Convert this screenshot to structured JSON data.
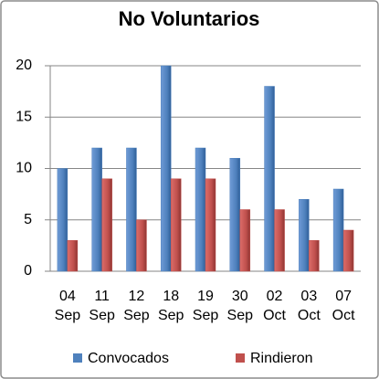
{
  "chart_data": {
    "type": "bar",
    "title": "No Voluntarios",
    "categories": [
      "04 Sep",
      "11 Sep",
      "12 Sep",
      "18 Sep",
      "19 Sep",
      "30 Sep",
      "02 Oct",
      "03 Oct",
      "07 Oct"
    ],
    "series": [
      {
        "name": "Convocados",
        "color": "#4f81bd",
        "values": [
          10,
          12,
          12,
          20,
          12,
          11,
          18,
          7,
          8
        ]
      },
      {
        "name": "Rindieron",
        "color": "#c0504d",
        "values": [
          3,
          9,
          5,
          9,
          9,
          6,
          6,
          3,
          4
        ]
      }
    ],
    "ylim": [
      0,
      20
    ],
    "yticks": [
      0,
      5,
      10,
      15,
      20
    ],
    "grid": true,
    "legend": "bottom"
  }
}
